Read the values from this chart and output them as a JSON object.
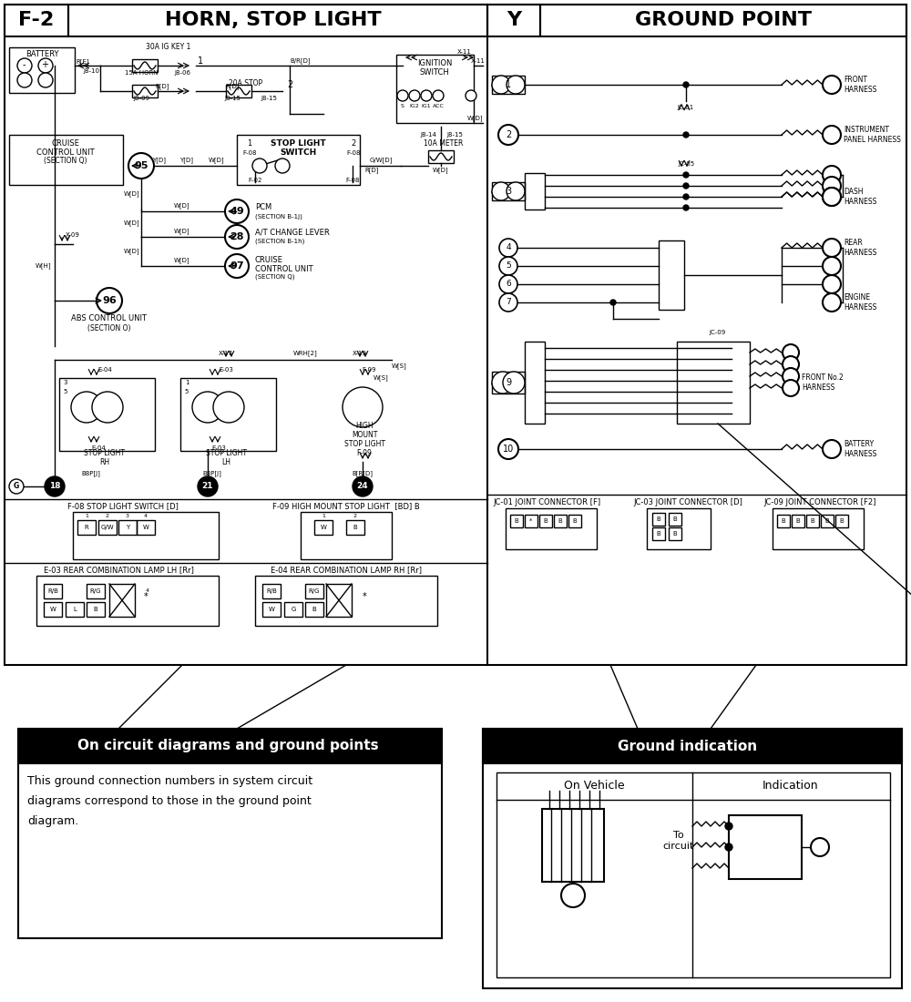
{
  "title_left": "F-2",
  "title_left_sub": "HORN, STOP LIGHT",
  "title_right": "Y",
  "title_right_sub": "GROUND POINT",
  "bg_color": "#ffffff",
  "annotation_box_left_title": "On circuit diagrams and ground points",
  "annotation_box_left_text": "This ground connection numbers in system circuit\ndiagrams correspond to those in the ground point\ndiagram.",
  "annotation_box_right_title": "Ground indication",
  "on_vehicle_label": "On Vehicle",
  "indication_label": "Indication",
  "to_circuit_label": "To\ncircuit"
}
